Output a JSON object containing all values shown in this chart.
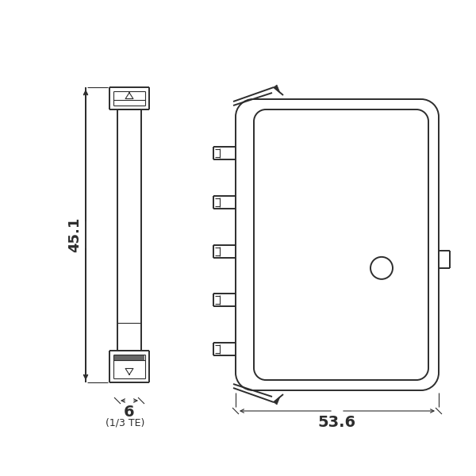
{
  "bg_color": "#ffffff",
  "line_color": "#2d2d2d",
  "lw": 1.4,
  "tlw": 0.8,
  "dim_text_45_1": "45.1",
  "dim_text_6": "6",
  "dim_text_53_6": "53.6",
  "dim_text_1_3te": "(1/3 TE)"
}
